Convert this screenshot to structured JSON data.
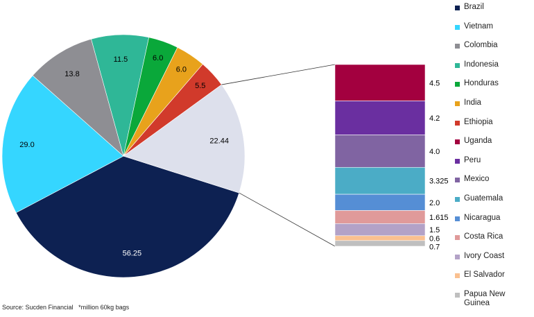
{
  "chart_data": {
    "type": "pie",
    "title": "",
    "pie": {
      "slices": [
        {
          "label": "Brazil",
          "value": 56.25,
          "value_label": "56.25",
          "color": "#0d2152",
          "label_color": "#ffffff"
        },
        {
          "label": "Vietnam",
          "value": 29.0,
          "value_label": "29.0",
          "color": "#35d6ff",
          "label_color": "#000000"
        },
        {
          "label": "Colombia",
          "value": 13.8,
          "value_label": "13.8",
          "color": "#8e8e93",
          "label_color": "#000000"
        },
        {
          "label": "Indonesia",
          "value": 11.5,
          "value_label": "11.5",
          "color": "#2fb797",
          "label_color": "#000000"
        },
        {
          "label": "Honduras",
          "value": 6.0,
          "value_label": "6.0",
          "color": "#0aa83a",
          "label_color": "#000000"
        },
        {
          "label": "India",
          "value": 6.0,
          "value_label": "6.0",
          "color": "#e8a21c",
          "label_color": "#000000"
        },
        {
          "label": "Ethiopia",
          "value": 5.5,
          "value_label": "5.5",
          "color": "#d13a2b",
          "label_color": "#000000"
        },
        {
          "label": "",
          "value": 22.44,
          "value_label": "22.44",
          "color": "#dde0ec",
          "label_color": "#000000"
        }
      ]
    },
    "breakdown": [
      {
        "label": "Uganda",
        "value": 4.5,
        "value_label": "4.5",
        "color": "#a3003f"
      },
      {
        "label": "Peru",
        "value": 4.2,
        "value_label": "4.2",
        "color": "#6a2fa0"
      },
      {
        "label": "Mexico",
        "value": 4.0,
        "value_label": "4.0",
        "color": "#8064a2"
      },
      {
        "label": "Guatemala",
        "value": 3.325,
        "value_label": "3.325",
        "color": "#4bacc6"
      },
      {
        "label": "Nicaragua",
        "value": 2.0,
        "value_label": "2.0",
        "color": "#558ed5"
      },
      {
        "label": "Costa Rica",
        "value": 1.615,
        "value_label": "1.615",
        "color": "#e09a9a"
      },
      {
        "label": "Ivory Coast",
        "value": 1.5,
        "value_label": "1.5",
        "color": "#b3a2c7"
      },
      {
        "label": "El Salvador",
        "value": 0.6,
        "value_label": "0.6",
        "color": "#fac090"
      },
      {
        "label": "Papua New Guinea",
        "value": 0.7,
        "value_label": "0.7",
        "color": "#bfbfbf"
      }
    ],
    "legend": {
      "placement": "right"
    }
  },
  "legend_items": [
    {
      "label": "Brazil",
      "color": "#0d2152"
    },
    {
      "label": "Vietnam",
      "color": "#35d6ff"
    },
    {
      "label": "Colombia",
      "color": "#8e8e93"
    },
    {
      "label": "Indonesia",
      "color": "#2fb797"
    },
    {
      "label": "Honduras",
      "color": "#0aa83a"
    },
    {
      "label": "India",
      "color": "#e8a21c"
    },
    {
      "label": "Ethiopia",
      "color": "#d13a2b"
    },
    {
      "label": "Uganda",
      "color": "#a3003f"
    },
    {
      "label": "Peru",
      "color": "#6a2fa0"
    },
    {
      "label": "Mexico",
      "color": "#8064a2"
    },
    {
      "label": "Guatemala",
      "color": "#4bacc6"
    },
    {
      "label": "Nicaragua",
      "color": "#558ed5"
    },
    {
      "label": "Costa Rica",
      "color": "#e09a9a"
    },
    {
      "label": "Ivory Coast",
      "color": "#b3a2c7"
    },
    {
      "label": "El Salvador",
      "color": "#fac090"
    },
    {
      "label": "Papua New Guinea",
      "color": "#bfbfbf"
    }
  ],
  "source": {
    "text": "Source: Sucden Financial",
    "note": "*million 60kg bags"
  }
}
